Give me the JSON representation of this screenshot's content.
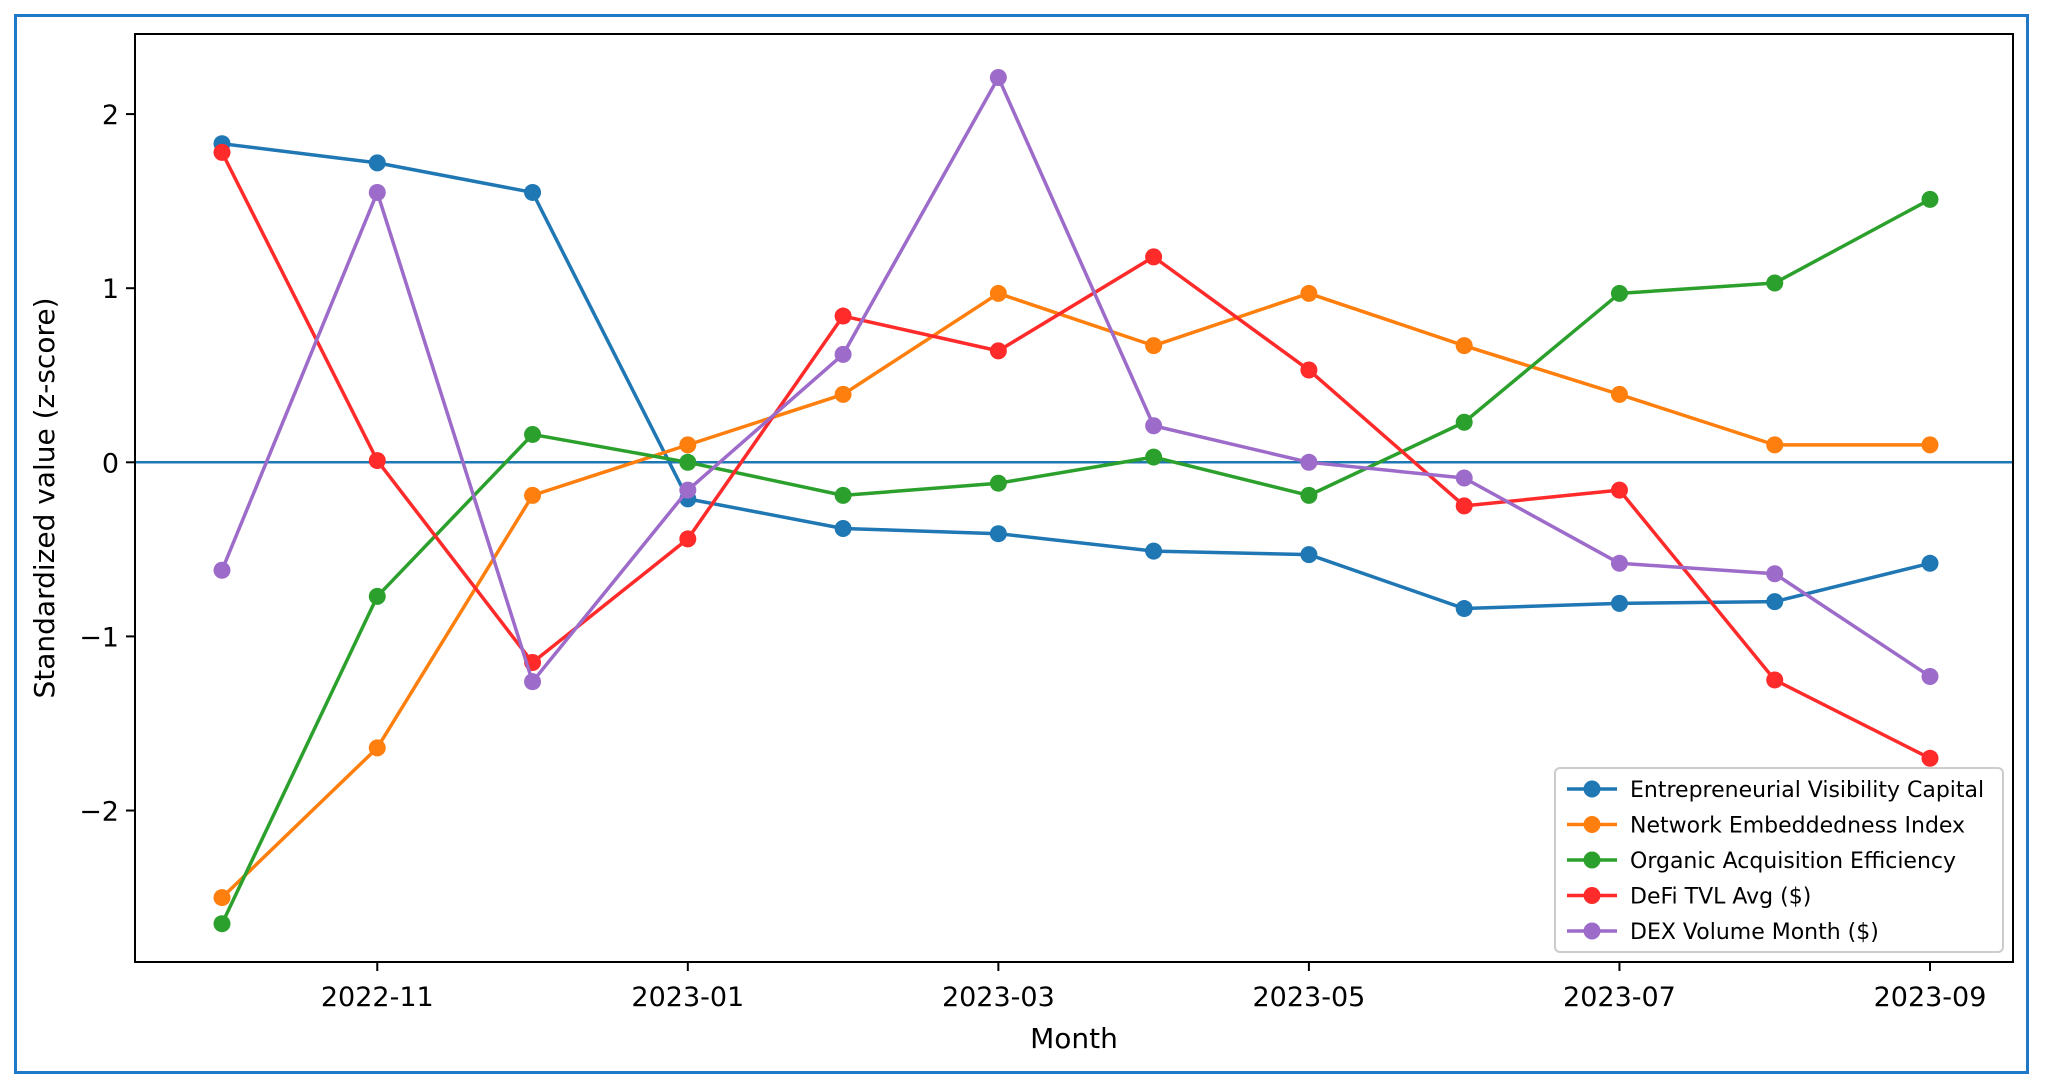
{
  "chart_data": {
    "type": "line",
    "xlabel": "Month",
    "ylabel": "Standardized value (z-score)",
    "x": [
      "2022-10",
      "2022-11",
      "2022-12",
      "2023-01",
      "2023-02",
      "2023-03",
      "2023-04",
      "2023-05",
      "2023-06",
      "2023-07",
      "2023-08",
      "2023-09"
    ],
    "x_ticks": [
      "2022-11",
      "2023-01",
      "2023-03",
      "2023-05",
      "2023-07",
      "2023-09"
    ],
    "y_ticks": [
      {
        "value": 2,
        "label": "2"
      },
      {
        "value": 1,
        "label": "1"
      },
      {
        "value": 0,
        "label": "0"
      },
      {
        "value": -1,
        "label": "−1"
      },
      {
        "value": -2,
        "label": "−2"
      }
    ],
    "ylim": [
      -2.87,
      2.46
    ],
    "reference_line": 0,
    "grid": false,
    "legend_position": "lower-right",
    "series": [
      {
        "name": "Entrepreneurial Visibility Capital",
        "color": "#1f77b4",
        "values": [
          1.83,
          1.72,
          1.55,
          -0.21,
          -0.38,
          -0.41,
          -0.51,
          -0.53,
          -0.84,
          -0.81,
          -0.8,
          -0.58
        ]
      },
      {
        "name": "Network Embeddedness Index",
        "color": "#ff7f0e",
        "values": [
          -2.5,
          -1.64,
          -0.19,
          0.1,
          0.39,
          0.97,
          0.67,
          0.97,
          0.67,
          0.39,
          0.1,
          0.1
        ]
      },
      {
        "name": "Organic Acquisition Efficiency",
        "color": "#2ca02c",
        "values": [
          -2.65,
          -0.77,
          0.16,
          0.0,
          -0.19,
          -0.12,
          0.03,
          -0.19,
          0.23,
          0.97,
          1.03,
          1.51
        ]
      },
      {
        "name": "DeFi TVL Avg ($)",
        "color": "#ff2a2a",
        "values": [
          1.78,
          0.01,
          -1.15,
          -0.44,
          0.84,
          0.64,
          1.18,
          0.53,
          -0.25,
          -0.16,
          -1.25,
          -1.7
        ]
      },
      {
        "name": "DEX Volume Month ($)",
        "color": "#9d6bc9",
        "values": [
          -0.62,
          1.55,
          -1.26,
          -0.16,
          0.62,
          2.21,
          0.21,
          0.0,
          -0.09,
          -0.58,
          -0.64,
          -1.23
        ]
      }
    ],
    "reference_line_color": "#1f77b4"
  }
}
